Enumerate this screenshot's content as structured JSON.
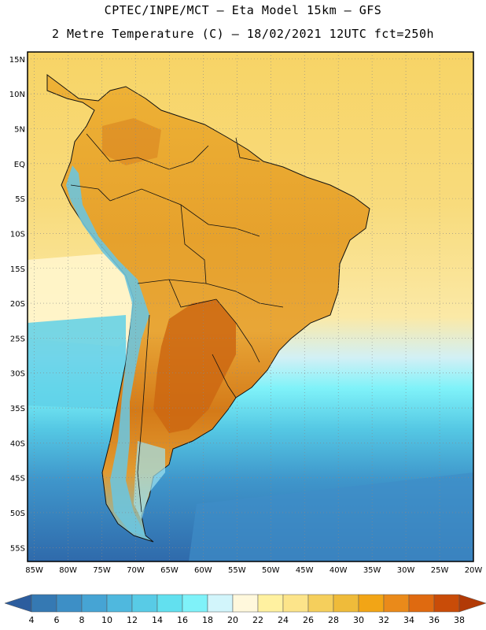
{
  "header": {
    "line1": "CPTEC/INPE/MCT –  Eta Model 15km – GFS",
    "line2": "2 Metre Temperature (C) – 18/02/2021 12UTC fct=250h"
  },
  "map": {
    "lat_labels": [
      "15N",
      "10N",
      "5N",
      "EQ",
      "5S",
      "10S",
      "15S",
      "20S",
      "25S",
      "30S",
      "35S",
      "40S",
      "45S",
      "50S",
      "55S"
    ],
    "lon_labels": [
      "85W",
      "80W",
      "75W",
      "70W",
      "65W",
      "60W",
      "55W",
      "50W",
      "45W",
      "40W",
      "35W",
      "30W",
      "25W",
      "20W"
    ],
    "lat_values": [
      15,
      10,
      5,
      0,
      -5,
      -10,
      -15,
      -20,
      -25,
      -30,
      -35,
      -40,
      -45,
      -50,
      -55
    ],
    "lon_values": [
      -85,
      -80,
      -75,
      -70,
      -65,
      -60,
      -55,
      -50,
      -45,
      -40,
      -35,
      -30,
      -25,
      -20
    ],
    "extent": {
      "lon_min": -86,
      "lon_max": -20,
      "lat_min": -57,
      "lat_max": 16
    }
  },
  "colorbar": {
    "labels": [
      "4",
      "6",
      "8",
      "10",
      "12",
      "14",
      "16",
      "18",
      "20",
      "22",
      "24",
      "26",
      "28",
      "30",
      "32",
      "34",
      "36",
      "38"
    ],
    "colors": [
      "#2c5d9e",
      "#3579b3",
      "#3d8fc6",
      "#46a4d4",
      "#4fb8de",
      "#58cbe6",
      "#62e0ef",
      "#7ff2f9",
      "#d2f5fb",
      "#fff8dc",
      "#fff1a0",
      "#fce48a",
      "#f5cf5c",
      "#efbb3a",
      "#f2a516",
      "#ea8a1a",
      "#df6a10",
      "#c94c08",
      "#b23a06"
    ]
  },
  "palette": {
    "ocean_warm": "#f6d778",
    "land_hot": "#d9861c",
    "land_hottest": "#c56010",
    "andes": "#6ec4dc",
    "ocean_cold": "#4fb8de",
    "ocean_deep": "#3a7fbf"
  }
}
